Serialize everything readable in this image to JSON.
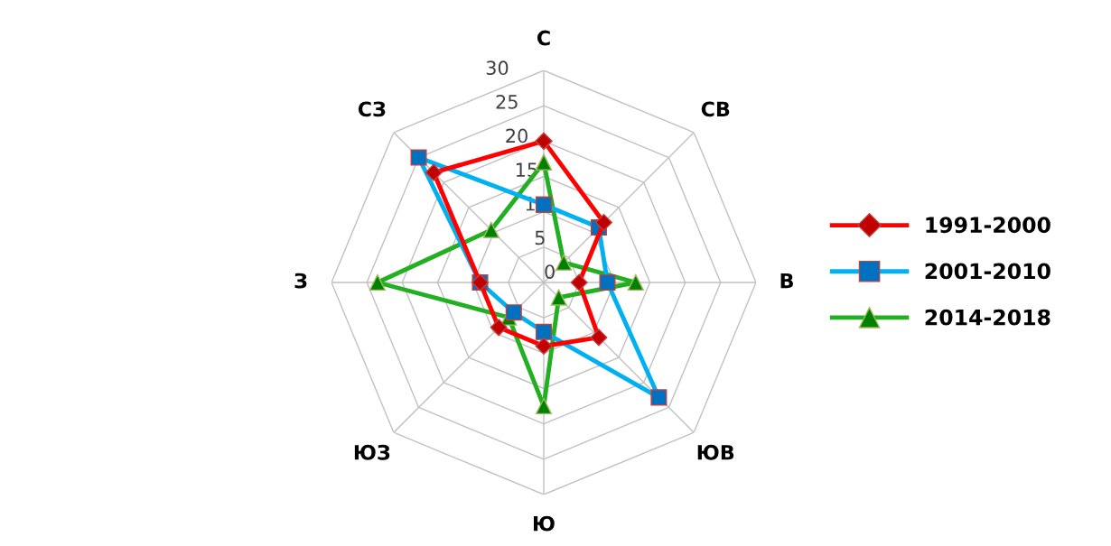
{
  "chart_data": {
    "type": "radar",
    "categories": [
      "С",
      "СВ",
      "В",
      "ЮВ",
      "Ю",
      "ЮЗ",
      "З",
      "СЗ"
    ],
    "ylim": [
      0,
      30
    ],
    "yticks": [
      0,
      5,
      10,
      15,
      20,
      25,
      30
    ],
    "grid": true,
    "legend": "right",
    "series": [
      {
        "name": "1991-2000",
        "color": "#ff0000",
        "marker": "diamond",
        "values": [
          20,
          12,
          5,
          11,
          9,
          9,
          9,
          22
        ]
      },
      {
        "name": "2001-2010",
        "color": "#00b0f0",
        "marker": "square",
        "values": [
          11,
          11,
          9,
          23,
          7,
          6,
          9,
          25
        ]
      },
      {
        "name": "2014-2018",
        "color": "#22b022",
        "marker": "triangle",
        "values": [
          17,
          4,
          13,
          3,
          17.5,
          7,
          23.5,
          10.5
        ]
      }
    ]
  }
}
